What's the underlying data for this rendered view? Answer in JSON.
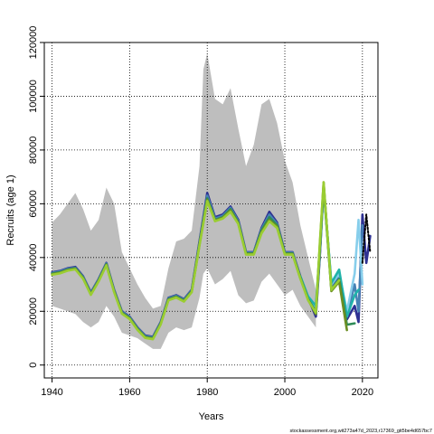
{
  "chart_data": {
    "type": "line",
    "title": "",
    "xlabel": "Years",
    "ylabel": "Recruits (age 1)",
    "xlim": [
      1938,
      2024
    ],
    "ylim": [
      -4800,
      120000
    ],
    "xticks": [
      1940,
      1960,
      1980,
      2000,
      2020
    ],
    "xtick_labels": [
      "1940",
      "1960",
      "1980",
      "2000",
      "2020"
    ],
    "yticks": [
      0,
      20000,
      40000,
      60000,
      80000,
      100000,
      120000
    ],
    "ytick_labels": [
      "0",
      "20000",
      "40000",
      "60000",
      "80000",
      "100000",
      "120000"
    ],
    "grid": true,
    "band": {
      "color": "#bebebe",
      "x": [
        1940,
        1942,
        1944,
        1946,
        1948,
        1950,
        1952,
        1954,
        1956,
        1958,
        1960,
        1962,
        1964,
        1966,
        1968,
        1970,
        1972,
        1974,
        1976,
        1978,
        1979,
        1980,
        1982,
        1984,
        1986,
        1988,
        1990,
        1992,
        1994,
        1996,
        1998,
        2000,
        2002,
        2004,
        2006,
        2008
      ],
      "upper": [
        53000,
        56000,
        60000,
        64000,
        58000,
        50000,
        54000,
        66000,
        60000,
        42000,
        36000,
        30000,
        25000,
        21000,
        22000,
        36000,
        46000,
        47000,
        50000,
        74000,
        110000,
        116000,
        99000,
        97000,
        103000,
        88000,
        74000,
        82000,
        97000,
        99000,
        90000,
        76000,
        68000,
        52000,
        40000,
        28000
      ],
      "lower": [
        22000,
        21000,
        20000,
        19000,
        16000,
        14000,
        16000,
        22000,
        18000,
        12000,
        11000,
        10000,
        8000,
        6000,
        6000,
        12000,
        14000,
        13000,
        14000,
        25000,
        34000,
        36000,
        30000,
        32000,
        35000,
        26000,
        23000,
        24000,
        31000,
        34000,
        30000,
        26000,
        28000,
        22000,
        18000,
        14000
      ]
    },
    "series": [
      {
        "color": "#2e3192",
        "x": [
          1940,
          1942,
          1944,
          1946,
          1948,
          1950,
          1952,
          1954,
          1956,
          1958,
          1960,
          1962,
          1964,
          1966,
          1968,
          1970,
          1972,
          1974,
          1976,
          1978,
          1980,
          1982,
          1984,
          1986,
          1988,
          1990,
          1992,
          1994,
          1996,
          1998,
          2000,
          2002,
          2004,
          2006,
          2008,
          2009,
          2010,
          2012,
          2014,
          2016,
          2018,
          2019,
          2020,
          2021,
          2022
        ],
        "values": [
          34500,
          35000,
          36000,
          36500,
          33000,
          27000,
          32000,
          38000,
          28000,
          20000,
          18000,
          14000,
          11000,
          10500,
          16000,
          25000,
          26000,
          24500,
          28000,
          46000,
          64000,
          55000,
          56000,
          59000,
          54000,
          42000,
          42000,
          51000,
          57000,
          53000,
          42000,
          42000,
          33000,
          25000,
          18000,
          40000,
          67000,
          29000,
          33000,
          17000,
          22000,
          16000,
          56000,
          38000,
          48000
        ]
      },
      {
        "color": "#4682b4",
        "x": [
          1940,
          1942,
          1944,
          1946,
          1948,
          1950,
          1952,
          1954,
          1956,
          1958,
          1960,
          1962,
          1964,
          1966,
          1968,
          1970,
          1972,
          1974,
          1976,
          1978,
          1980,
          1982,
          1984,
          1986,
          1988,
          1990,
          1992,
          1994,
          1996,
          1998,
          2000,
          2002,
          2004,
          2006,
          2008,
          2009,
          2010,
          2012,
          2014,
          2016,
          2018,
          2019,
          2020
        ],
        "values": [
          34300,
          34800,
          35800,
          36200,
          32800,
          26800,
          31800,
          37800,
          27800,
          19800,
          17800,
          13800,
          10800,
          10300,
          15800,
          24800,
          25800,
          24300,
          27800,
          45500,
          63000,
          54500,
          55500,
          58500,
          53500,
          41800,
          41800,
          50500,
          56000,
          52500,
          41800,
          41800,
          32800,
          24800,
          19500,
          41000,
          66500,
          29500,
          33500,
          18000,
          30000,
          20000,
          52000
        ]
      },
      {
        "color": "#87ceeb",
        "x": [
          2006,
          2008,
          2009,
          2010,
          2012,
          2014,
          2016,
          2018,
          2019,
          2020
        ],
        "values": [
          26000,
          21000,
          42000,
          66000,
          30000,
          34000,
          20000,
          34000,
          54000,
          30000
        ]
      },
      {
        "color": "#20b2aa",
        "x": [
          2004,
          2006,
          2008,
          2009,
          2010,
          2012,
          2014,
          2016,
          2018,
          2019
        ],
        "values": [
          33000,
          25500,
          22000,
          43000,
          66000,
          30500,
          35500,
          18000,
          26000,
          28000
        ]
      },
      {
        "color": "#2e8b57",
        "x": [
          1940,
          1942,
          1944,
          1946,
          1948,
          1950,
          1952,
          1954,
          1956,
          1958,
          1960,
          1962,
          1964,
          1966,
          1968,
          1970,
          1972,
          1974,
          1976,
          1978,
          1980,
          1982,
          1984,
          1986,
          1988,
          1990,
          1992,
          1994,
          1996,
          1998,
          2000,
          2002,
          2004,
          2006,
          2008,
          2009,
          2010,
          2012,
          2014,
          2016,
          2018
        ],
        "values": [
          34000,
          34500,
          35500,
          36000,
          32500,
          26500,
          31500,
          37500,
          27500,
          19500,
          17500,
          13500,
          10500,
          10000,
          15500,
          24500,
          25500,
          24000,
          27500,
          45000,
          62000,
          54000,
          55000,
          58000,
          53000,
          41500,
          41500,
          50000,
          55000,
          52000,
          41500,
          41500,
          32500,
          24500,
          20000,
          42000,
          66000,
          28000,
          32000,
          15000,
          15500
        ]
      },
      {
        "color": "#6b8e23",
        "x": [
          1940,
          1942,
          1944,
          1946,
          1948,
          1950,
          1952,
          1954,
          1956,
          1958,
          1960,
          1962,
          1964,
          1966,
          1968,
          1970,
          1972,
          1974,
          1976,
          1978,
          1980,
          1982,
          1984,
          1986,
          1988,
          1990,
          1992,
          1994,
          1996,
          1998,
          2000,
          2002,
          2004,
          2006,
          2008,
          2009,
          2010,
          2012,
          2014,
          2016
        ],
        "values": [
          33800,
          34300,
          35300,
          35800,
          32300,
          26300,
          31300,
          37300,
          27300,
          19300,
          17300,
          13300,
          10300,
          9800,
          15300,
          24300,
          25300,
          23800,
          27300,
          44800,
          61500,
          53800,
          54800,
          57500,
          52800,
          41300,
          41300,
          49500,
          54000,
          51500,
          41300,
          41300,
          32300,
          24300,
          19000,
          44000,
          68000,
          27500,
          31000,
          13000
        ]
      },
      {
        "color": "#9acd32",
        "x": [
          1940,
          1942,
          1944,
          1946,
          1948,
          1950,
          1952,
          1954,
          1956,
          1958,
          1960,
          1962,
          1964,
          1966,
          1968,
          1970,
          1972,
          1974,
          1976,
          1978,
          1980,
          1982,
          1984,
          1986,
          1988,
          1990,
          1992,
          1994,
          1996,
          1998,
          2000,
          2002,
          2004,
          2006,
          2008,
          2009,
          2010,
          2012,
          2014
        ],
        "values": [
          33600,
          34100,
          35100,
          35600,
          32100,
          26100,
          31100,
          37100,
          27100,
          19100,
          17100,
          13100,
          10100,
          9600,
          15100,
          24100,
          25100,
          23600,
          27100,
          44500,
          61000,
          53500,
          54500,
          57000,
          52500,
          41100,
          41100,
          49000,
          53500,
          51000,
          41100,
          41100,
          32100,
          24100,
          19500,
          45000,
          68000,
          28000,
          31500
        ]
      },
      {
        "color": "#000000",
        "dashed": true,
        "x": [
          2020,
          2021,
          2022
        ],
        "values": [
          38000,
          56000,
          42000
        ]
      }
    ]
  },
  "footer_text": "stockassessment.org,wit273a47d_2023,r17369_git5be4d657bc7"
}
